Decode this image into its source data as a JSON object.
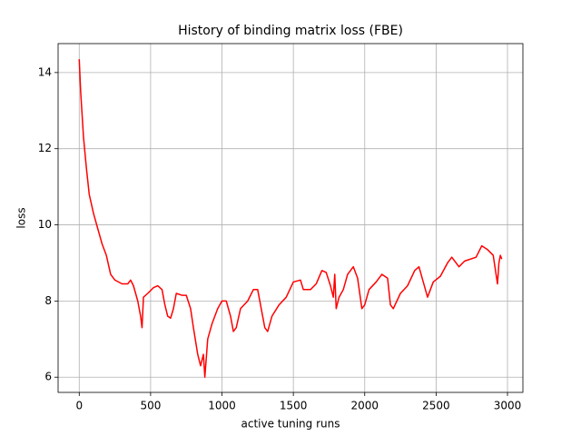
{
  "chart_data": {
    "type": "line",
    "title": "History of binding matrix loss (FBE)",
    "xlabel": "active tuning runs",
    "ylabel": "loss",
    "x": [
      0,
      10,
      30,
      50,
      70,
      100,
      130,
      160,
      190,
      220,
      250,
      300,
      340,
      360,
      380,
      410,
      430,
      440,
      450,
      480,
      520,
      550,
      580,
      600,
      620,
      640,
      660,
      680,
      720,
      750,
      780,
      800,
      830,
      850,
      870,
      880,
      900,
      930,
      970,
      1000,
      1030,
      1060,
      1080,
      1100,
      1130,
      1180,
      1220,
      1250,
      1270,
      1300,
      1320,
      1350,
      1400,
      1450,
      1500,
      1550,
      1570,
      1620,
      1660,
      1700,
      1730,
      1760,
      1780,
      1790,
      1800,
      1820,
      1850,
      1880,
      1920,
      1950,
      1980,
      2000,
      2030,
      2080,
      2120,
      2160,
      2180,
      2200,
      2250,
      2300,
      2350,
      2380,
      2410,
      2440,
      2480,
      2530,
      2580,
      2610,
      2640,
      2660,
      2700,
      2780,
      2820,
      2860,
      2900,
      2930,
      2940,
      2950,
      2960
    ],
    "values": [
      14.35,
      13.5,
      12.3,
      11.5,
      10.8,
      10.3,
      9.9,
      9.5,
      9.2,
      8.7,
      8.55,
      8.45,
      8.45,
      8.55,
      8.4,
      8.0,
      7.6,
      7.3,
      8.1,
      8.2,
      8.35,
      8.4,
      8.3,
      7.9,
      7.6,
      7.55,
      7.8,
      8.2,
      8.15,
      8.15,
      7.8,
      7.3,
      6.6,
      6.3,
      6.6,
      6.0,
      7.0,
      7.4,
      7.8,
      8.0,
      8.0,
      7.6,
      7.2,
      7.3,
      7.8,
      8.0,
      8.3,
      8.3,
      7.9,
      7.3,
      7.2,
      7.6,
      7.9,
      8.1,
      8.5,
      8.55,
      8.3,
      8.3,
      8.45,
      8.8,
      8.75,
      8.4,
      8.1,
      8.7,
      7.8,
      8.1,
      8.3,
      8.7,
      8.9,
      8.6,
      7.8,
      7.9,
      8.3,
      8.5,
      8.7,
      8.6,
      7.9,
      7.8,
      8.2,
      8.4,
      8.8,
      8.9,
      8.5,
      8.1,
      8.5,
      8.65,
      9.0,
      9.15,
      9.0,
      8.9,
      9.05,
      9.15,
      9.45,
      9.35,
      9.2,
      8.45,
      9.0,
      9.2,
      9.1
    ],
    "color": "#ff0000",
    "xlim": [
      -148,
      3108
    ],
    "ylim": [
      5.6,
      14.76
    ],
    "xticks": [
      0,
      500,
      1000,
      1500,
      2000,
      2500,
      3000
    ],
    "yticks": [
      6,
      8,
      10,
      12,
      14
    ],
    "grid": true
  }
}
